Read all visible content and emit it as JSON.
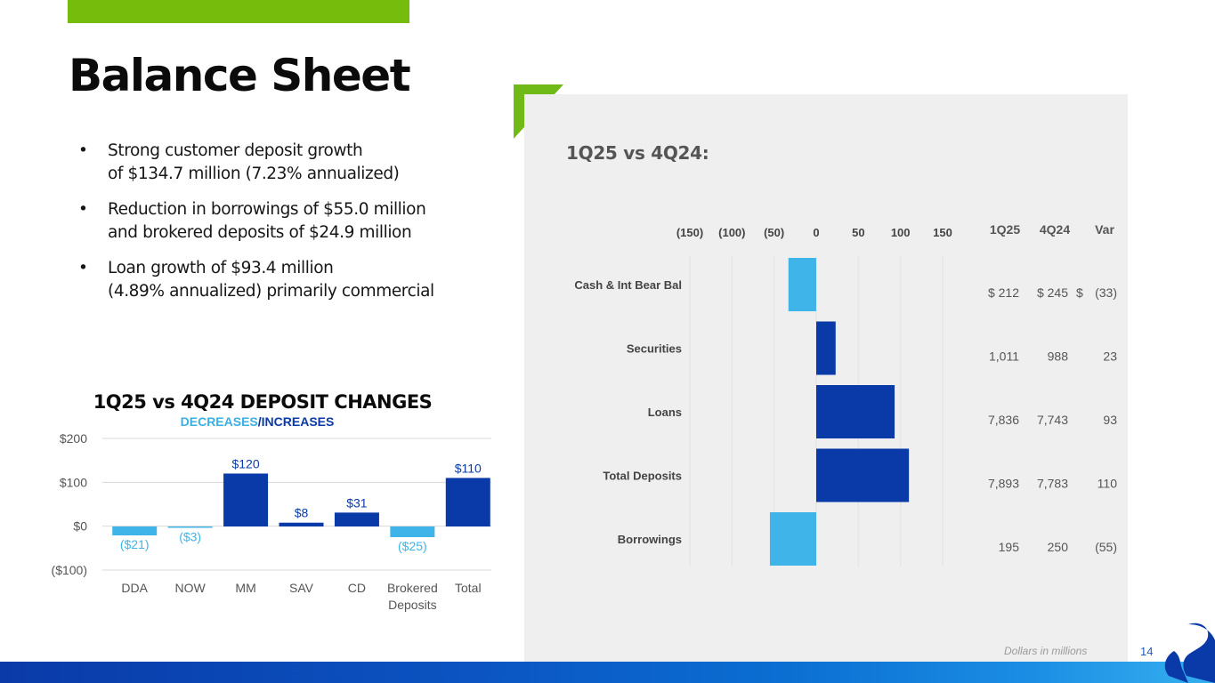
{
  "page": {
    "title": "Balance Sheet",
    "bullets": [
      [
        "Strong customer deposit growth",
        "of $134.7 million (7.23% annualized)"
      ],
      [
        "Reduction in borrowings of $55.0 million",
        "and brokered deposits of $24.9 million"
      ],
      [
        "Loan growth of $93.4 million",
        "(4.89% annualized) primarily commercial"
      ]
    ],
    "bullet_char": "•",
    "footnote": "Dollars in millions",
    "page_number": "14"
  },
  "colors": {
    "increase": "#0a3aa8",
    "decrease": "#3fb4e8",
    "accent_green": "#76bc0c",
    "panel_bg": "#efefef"
  },
  "chart_data": [
    {
      "type": "bar",
      "title": "1Q25 vs 4Q24 DEPOSIT CHANGES",
      "subtitle_parts": [
        "DECREASES",
        "/",
        "INCREASES"
      ],
      "categories": [
        "DDA",
        "NOW",
        "MM",
        "SAV",
        "CD",
        "Brokered Deposits",
        "Total"
      ],
      "values": [
        -21,
        -3,
        120,
        8,
        31,
        -25,
        110
      ],
      "data_labels": [
        "($21)",
        "($3)",
        "$120",
        "$8",
        "$31",
        "($25)",
        "$110"
      ],
      "y_ticks": [
        200,
        100,
        0,
        -100
      ],
      "y_tick_labels": [
        "$200",
        "$100",
        "$0",
        "($100)"
      ],
      "ylim": [
        -100,
        200
      ],
      "grid": true
    },
    {
      "type": "bar",
      "orientation": "horizontal",
      "title": "1Q25 vs 4Q24:",
      "categories": [
        "Cash & Int Bear Bal",
        "Securities",
        "Loans",
        "Total Deposits",
        "Borrowings"
      ],
      "values": [
        -33,
        23,
        93,
        110,
        -55
      ],
      "x_ticks": [
        -150,
        -100,
        -50,
        0,
        50,
        100,
        150
      ],
      "x_tick_labels": [
        "(150)",
        "(100)",
        "(50)",
        "0",
        "50",
        "100",
        "150"
      ],
      "xlim": [
        -150,
        150
      ],
      "table_headers": [
        "1Q25",
        "4Q24",
        "Var"
      ],
      "table_rows": [
        [
          "$ 212",
          "$ 245",
          "$",
          "(33)"
        ],
        [
          "1,011",
          "988",
          "",
          "23"
        ],
        [
          "7,836",
          "7,743",
          "",
          "93"
        ],
        [
          "7,893",
          "7,783",
          "",
          "110"
        ],
        [
          "195",
          "250",
          "",
          "(55)"
        ]
      ]
    }
  ]
}
